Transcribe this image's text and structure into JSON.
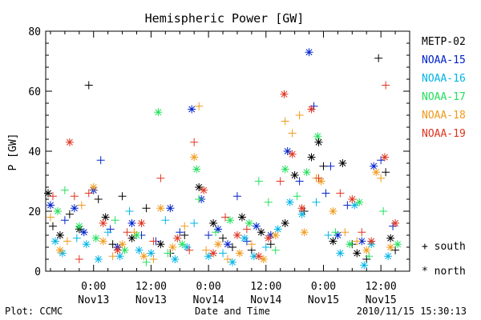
{
  "chart_data": {
    "type": "scatter",
    "title": "Hemispheric Power [GW]",
    "ylabel": "P [GW]",
    "xlabel": "Date and Time",
    "ylim": [
      0,
      80
    ],
    "yticks": [
      "0",
      "20",
      "40",
      "60",
      "80"
    ],
    "xlim": [
      -10,
      66
    ],
    "xticks": [
      {
        "hour": 0,
        "time": "0:00",
        "date": "Nov13"
      },
      {
        "hour": 12,
        "time": "12:00",
        "date": "Nov13"
      },
      {
        "hour": 24,
        "time": "0:00",
        "date": "Nov14"
      },
      {
        "hour": 36,
        "time": "12:00",
        "date": "Nov14"
      },
      {
        "hour": 48,
        "time": "0:00",
        "date": "Nov15"
      },
      {
        "hour": 60,
        "time": "12:00",
        "date": "Nov15"
      }
    ],
    "x_units": "hours since Nov13 0:00",
    "markers": {
      "south": "+",
      "north": "*"
    },
    "series": [
      {
        "name": "METP-02",
        "color": "#000000",
        "points": [
          {
            "x": -9.5,
            "y": 26,
            "m": "*"
          },
          {
            "x": -8.5,
            "y": 15,
            "m": "+"
          },
          {
            "x": -7,
            "y": 12,
            "m": "*"
          },
          {
            "x": -5,
            "y": 19,
            "m": "+"
          },
          {
            "x": -3,
            "y": 14,
            "m": "*"
          },
          {
            "x": -1,
            "y": 62,
            "m": "+"
          },
          {
            "x": 1,
            "y": 24,
            "m": "+"
          },
          {
            "x": 2.5,
            "y": 18,
            "m": "*"
          },
          {
            "x": 4,
            "y": 9,
            "m": "+"
          },
          {
            "x": 6,
            "y": 25,
            "m": "+"
          },
          {
            "x": 8,
            "y": 11,
            "m": "*"
          },
          {
            "x": 11,
            "y": 21,
            "m": "+"
          },
          {
            "x": 14,
            "y": 9,
            "m": "*"
          },
          {
            "x": 16,
            "y": 6,
            "m": "+"
          },
          {
            "x": 19,
            "y": 12,
            "m": "+"
          },
          {
            "x": 22,
            "y": 28,
            "m": "*"
          },
          {
            "x": 25,
            "y": 16,
            "m": "*"
          },
          {
            "x": 27,
            "y": 11,
            "m": "+"
          },
          {
            "x": 29,
            "y": 8,
            "m": "+"
          },
          {
            "x": 31,
            "y": 18,
            "m": "*"
          },
          {
            "x": 33,
            "y": 7,
            "m": "+"
          },
          {
            "x": 35,
            "y": 13,
            "m": "*"
          },
          {
            "x": 37,
            "y": 9,
            "m": "+"
          },
          {
            "x": 40,
            "y": 16,
            "m": "*"
          },
          {
            "x": 42,
            "y": 32,
            "m": "*"
          },
          {
            "x": 44,
            "y": 20,
            "m": "+"
          },
          {
            "x": 45.5,
            "y": 38,
            "m": "*"
          },
          {
            "x": 47,
            "y": 43,
            "m": "*"
          },
          {
            "x": 48,
            "y": 35,
            "m": "+"
          },
          {
            "x": 50,
            "y": 10,
            "m": "*"
          },
          {
            "x": 52,
            "y": 36,
            "m": "*"
          },
          {
            "x": 54,
            "y": 9,
            "m": "+"
          },
          {
            "x": 55,
            "y": 6,
            "m": "*"
          },
          {
            "x": 57,
            "y": 4,
            "m": "+"
          },
          {
            "x": 59.5,
            "y": 71,
            "m": "+"
          },
          {
            "x": 61,
            "y": 33,
            "m": "+"
          },
          {
            "x": 62,
            "y": 11,
            "m": "*"
          },
          {
            "x": 63,
            "y": 7,
            "m": "+"
          }
        ]
      },
      {
        "name": "NOAA-15",
        "color": "#0022cc",
        "points": [
          {
            "x": -9,
            "y": 22,
            "m": "*"
          },
          {
            "x": -6,
            "y": 17,
            "m": "+"
          },
          {
            "x": -4,
            "y": 21,
            "m": "*"
          },
          {
            "x": -2,
            "y": 13,
            "m": "*"
          },
          {
            "x": 0,
            "y": 27,
            "m": "*"
          },
          {
            "x": 1.5,
            "y": 37,
            "m": "+"
          },
          {
            "x": 3.5,
            "y": 14,
            "m": "+"
          },
          {
            "x": 5,
            "y": 8,
            "m": "*"
          },
          {
            "x": 8,
            "y": 16,
            "m": "*"
          },
          {
            "x": 10,
            "y": 12,
            "m": "+"
          },
          {
            "x": 13,
            "y": 10,
            "m": "+"
          },
          {
            "x": 16,
            "y": 21,
            "m": "*"
          },
          {
            "x": 18,
            "y": 13,
            "m": "+"
          },
          {
            "x": 20.5,
            "y": 54,
            "m": "*"
          },
          {
            "x": 22.5,
            "y": 24,
            "m": "*"
          },
          {
            "x": 24,
            "y": 12,
            "m": "+"
          },
          {
            "x": 26,
            "y": 14,
            "m": "*"
          },
          {
            "x": 28,
            "y": 9,
            "m": "*"
          },
          {
            "x": 30,
            "y": 25,
            "m": "+"
          },
          {
            "x": 32,
            "y": 10,
            "m": "+"
          },
          {
            "x": 34,
            "y": 15,
            "m": "*"
          },
          {
            "x": 37,
            "y": 12,
            "m": "*"
          },
          {
            "x": 40.5,
            "y": 40,
            "m": "*"
          },
          {
            "x": 43,
            "y": 30,
            "m": "+"
          },
          {
            "x": 45,
            "y": 73,
            "m": "*"
          },
          {
            "x": 46,
            "y": 55,
            "m": "+"
          },
          {
            "x": 48.5,
            "y": 26,
            "m": "+"
          },
          {
            "x": 49.5,
            "y": 35,
            "m": "+"
          },
          {
            "x": 51,
            "y": 12,
            "m": "*"
          },
          {
            "x": 53,
            "y": 22,
            "m": "+"
          },
          {
            "x": 56,
            "y": 10,
            "m": "*"
          },
          {
            "x": 58.5,
            "y": 35,
            "m": "*"
          },
          {
            "x": 60,
            "y": 37,
            "m": "+"
          },
          {
            "x": 62.5,
            "y": 15,
            "m": "+"
          }
        ]
      },
      {
        "name": "NOAA-16",
        "color": "#00b4e6",
        "points": [
          {
            "x": -8,
            "y": 10,
            "m": "*"
          },
          {
            "x": -6.5,
            "y": 6,
            "m": "*"
          },
          {
            "x": -3.5,
            "y": 11,
            "m": "+"
          },
          {
            "x": -1.5,
            "y": 9,
            "m": "*"
          },
          {
            "x": 1,
            "y": 4,
            "m": "*"
          },
          {
            "x": 3,
            "y": 13,
            "m": "+"
          },
          {
            "x": 5.5,
            "y": 5,
            "m": "*"
          },
          {
            "x": 7.5,
            "y": 20,
            "m": "+"
          },
          {
            "x": 9.5,
            "y": 7,
            "m": "*"
          },
          {
            "x": 12,
            "y": 6,
            "m": "*"
          },
          {
            "x": 15,
            "y": 17,
            "m": "+"
          },
          {
            "x": 17,
            "y": 4,
            "m": "*"
          },
          {
            "x": 19.5,
            "y": 8,
            "m": "*"
          },
          {
            "x": 21,
            "y": 16,
            "m": "+"
          },
          {
            "x": 24,
            "y": 5,
            "m": "*"
          },
          {
            "x": 27,
            "y": 6,
            "m": "+"
          },
          {
            "x": 29,
            "y": 3,
            "m": "*"
          },
          {
            "x": 31.5,
            "y": 11,
            "m": "*"
          },
          {
            "x": 33.5,
            "y": 5,
            "m": "*"
          },
          {
            "x": 36,
            "y": 8,
            "m": "+"
          },
          {
            "x": 38.5,
            "y": 14,
            "m": "*"
          },
          {
            "x": 41,
            "y": 23,
            "m": "*"
          },
          {
            "x": 43.5,
            "y": 19,
            "m": "*"
          },
          {
            "x": 46.5,
            "y": 23,
            "m": "+"
          },
          {
            "x": 49,
            "y": 12,
            "m": "+"
          },
          {
            "x": 51.5,
            "y": 6,
            "m": "*"
          },
          {
            "x": 54.5,
            "y": 22,
            "m": "*"
          },
          {
            "x": 56.5,
            "y": 2,
            "m": "*"
          },
          {
            "x": 58,
            "y": 9,
            "m": "*"
          },
          {
            "x": 61.5,
            "y": 5,
            "m": "*"
          }
        ]
      },
      {
        "name": "NOAA-17",
        "color": "#22e05a",
        "points": [
          {
            "x": -7.5,
            "y": 20,
            "m": "*"
          },
          {
            "x": -6,
            "y": 27,
            "m": "+"
          },
          {
            "x": -3,
            "y": 15,
            "m": "*"
          },
          {
            "x": 0.5,
            "y": 11,
            "m": "*"
          },
          {
            "x": 4.5,
            "y": 17,
            "m": "+"
          },
          {
            "x": 6.5,
            "y": 7,
            "m": "*"
          },
          {
            "x": 9,
            "y": 12,
            "m": "*"
          },
          {
            "x": 11,
            "y": 3,
            "m": "+"
          },
          {
            "x": 13.5,
            "y": 53,
            "m": "*"
          },
          {
            "x": 15.5,
            "y": 6,
            "m": "+"
          },
          {
            "x": 18.5,
            "y": 9,
            "m": "*"
          },
          {
            "x": 21.5,
            "y": 34,
            "m": "*"
          },
          {
            "x": 22,
            "y": 24,
            "m": "+"
          },
          {
            "x": 25.5,
            "y": 13,
            "m": "+"
          },
          {
            "x": 28.5,
            "y": 17,
            "m": "*"
          },
          {
            "x": 32.5,
            "y": 16,
            "m": "*"
          },
          {
            "x": 34.5,
            "y": 30,
            "m": "+"
          },
          {
            "x": 36.5,
            "y": 23,
            "m": "+"
          },
          {
            "x": 38,
            "y": 7,
            "m": "+"
          },
          {
            "x": 40,
            "y": 34,
            "m": "*"
          },
          {
            "x": 42.5,
            "y": 25,
            "m": "+"
          },
          {
            "x": 44.5,
            "y": 33,
            "m": "*"
          },
          {
            "x": 46.8,
            "y": 45,
            "m": "*"
          },
          {
            "x": 50.5,
            "y": 13,
            "m": "+"
          },
          {
            "x": 53.5,
            "y": 9,
            "m": "*"
          },
          {
            "x": 55.5,
            "y": 23,
            "m": "*"
          },
          {
            "x": 57.5,
            "y": 5,
            "m": "+"
          },
          {
            "x": 60.5,
            "y": 20,
            "m": "+"
          },
          {
            "x": 63.5,
            "y": 9,
            "m": "*"
          }
        ]
      },
      {
        "name": "NOAA-18",
        "color": "#f09a1a",
        "points": [
          {
            "x": -9,
            "y": 18,
            "m": "+"
          },
          {
            "x": -7,
            "y": 7,
            "m": "*"
          },
          {
            "x": -5.5,
            "y": 10,
            "m": "+"
          },
          {
            "x": -2.5,
            "y": 22,
            "m": "+"
          },
          {
            "x": 0,
            "y": 28,
            "m": "*"
          },
          {
            "x": 2,
            "y": 10,
            "m": "*"
          },
          {
            "x": 4,
            "y": 5,
            "m": "+"
          },
          {
            "x": 6,
            "y": 9,
            "m": "*"
          },
          {
            "x": 8.5,
            "y": 13,
            "m": "+"
          },
          {
            "x": 10.5,
            "y": 5,
            "m": "*"
          },
          {
            "x": 12.5,
            "y": 4,
            "m": "+"
          },
          {
            "x": 14,
            "y": 21,
            "m": "*"
          },
          {
            "x": 16.5,
            "y": 8,
            "m": "*"
          },
          {
            "x": 19,
            "y": 15,
            "m": "+"
          },
          {
            "x": 21,
            "y": 38,
            "m": "*"
          },
          {
            "x": 22,
            "y": 55,
            "m": "+"
          },
          {
            "x": 23.5,
            "y": 7,
            "m": "+"
          },
          {
            "x": 26,
            "y": 9,
            "m": "*"
          },
          {
            "x": 28,
            "y": 4,
            "m": "+"
          },
          {
            "x": 30.5,
            "y": 6,
            "m": "*"
          },
          {
            "x": 33,
            "y": 9,
            "m": "+"
          },
          {
            "x": 35.5,
            "y": 4,
            "m": "*"
          },
          {
            "x": 38,
            "y": 12,
            "m": "*"
          },
          {
            "x": 40,
            "y": 50,
            "m": "+"
          },
          {
            "x": 41.5,
            "y": 46,
            "m": "+"
          },
          {
            "x": 43,
            "y": 52,
            "m": "+"
          },
          {
            "x": 44,
            "y": 13,
            "m": "*"
          },
          {
            "x": 46.5,
            "y": 31,
            "m": "+"
          },
          {
            "x": 47.5,
            "y": 30,
            "m": "*"
          },
          {
            "x": 50,
            "y": 20,
            "m": "*"
          },
          {
            "x": 52.5,
            "y": 13,
            "m": "+"
          },
          {
            "x": 55,
            "y": 10,
            "m": "+"
          },
          {
            "x": 57,
            "y": 7,
            "m": "*"
          },
          {
            "x": 59,
            "y": 33,
            "m": "*"
          },
          {
            "x": 60,
            "y": 31,
            "m": "+"
          },
          {
            "x": 62,
            "y": 8,
            "m": "*"
          }
        ]
      },
      {
        "name": "NOAA-19",
        "color": "#e0321e",
        "points": [
          {
            "x": -8.5,
            "y": 25,
            "m": "+"
          },
          {
            "x": -5,
            "y": 43,
            "m": "*"
          },
          {
            "x": -4,
            "y": 25,
            "m": "+"
          },
          {
            "x": -3,
            "y": 4,
            "m": "+"
          },
          {
            "x": -1,
            "y": 26,
            "m": "+"
          },
          {
            "x": 2,
            "y": 16,
            "m": "*"
          },
          {
            "x": 5,
            "y": 7,
            "m": "*"
          },
          {
            "x": 7,
            "y": 13,
            "m": "+"
          },
          {
            "x": 10,
            "y": 16,
            "m": "*"
          },
          {
            "x": 12.5,
            "y": 10,
            "m": "+"
          },
          {
            "x": 14,
            "y": 31,
            "m": "+"
          },
          {
            "x": 17.5,
            "y": 11,
            "m": "*"
          },
          {
            "x": 20,
            "y": 7,
            "m": "+"
          },
          {
            "x": 21,
            "y": 43,
            "m": "+"
          },
          {
            "x": 23,
            "y": 27,
            "m": "*"
          },
          {
            "x": 25,
            "y": 6,
            "m": "*"
          },
          {
            "x": 27.5,
            "y": 18,
            "m": "+"
          },
          {
            "x": 30,
            "y": 12,
            "m": "*"
          },
          {
            "x": 32,
            "y": 14,
            "m": "+"
          },
          {
            "x": 34.5,
            "y": 5,
            "m": "*"
          },
          {
            "x": 36.5,
            "y": 11,
            "m": "*"
          },
          {
            "x": 39,
            "y": 30,
            "m": "+"
          },
          {
            "x": 39.8,
            "y": 59,
            "m": "*"
          },
          {
            "x": 41.5,
            "y": 39,
            "m": "*"
          },
          {
            "x": 43.5,
            "y": 21,
            "m": "*"
          },
          {
            "x": 45.5,
            "y": 54,
            "m": "*"
          },
          {
            "x": 47,
            "y": 31,
            "m": "+"
          },
          {
            "x": 51.5,
            "y": 26,
            "m": "+"
          },
          {
            "x": 54,
            "y": 24,
            "m": "*"
          },
          {
            "x": 56,
            "y": 13,
            "m": "+"
          },
          {
            "x": 58,
            "y": 10,
            "m": "*"
          },
          {
            "x": 60.8,
            "y": 38,
            "m": "*"
          },
          {
            "x": 61,
            "y": 62,
            "m": "+"
          },
          {
            "x": 63,
            "y": 16,
            "m": "*"
          }
        ]
      }
    ]
  },
  "legend": {
    "south_label": "south",
    "north_label": "north"
  },
  "footer": {
    "left": "Plot: CCMC",
    "center": "Date and Time",
    "right": "2010/11/15 15:30:13"
  }
}
